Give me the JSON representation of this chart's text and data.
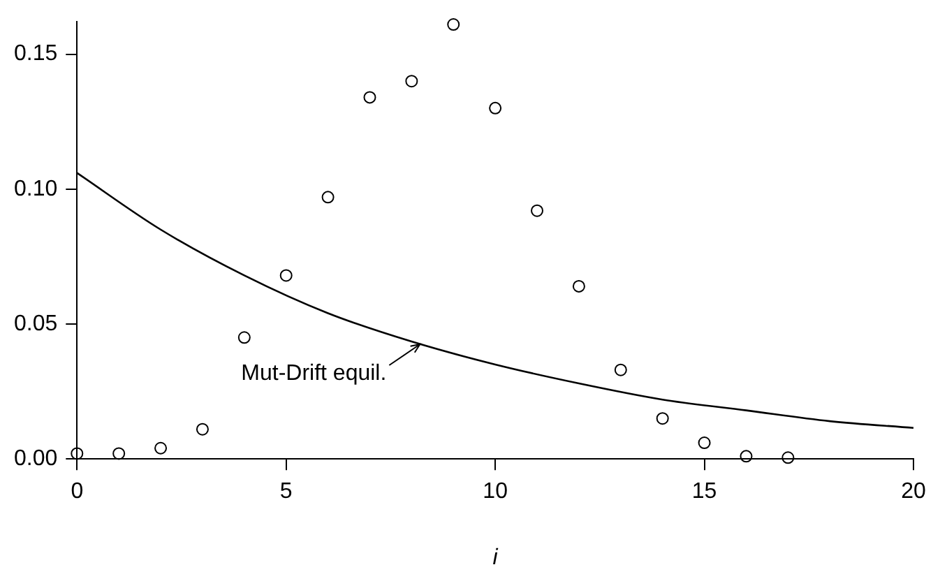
{
  "chart_data": {
    "type": "scatter",
    "xlabel": "i",
    "xlim": [
      0,
      20
    ],
    "xticks": [
      0,
      5,
      10,
      15,
      20
    ],
    "ylim": [
      0,
      0.162
    ],
    "yticks": [
      {
        "value": 0,
        "label": "0.00"
      },
      0.05,
      {
        "value": 0.1,
        "label": "0.10"
      },
      0.15
    ],
    "grid": false,
    "legend": false,
    "marker": "circle",
    "series": [
      {
        "color": "#000000",
        "x": [
          0,
          1,
          2,
          3,
          4,
          5,
          6,
          7,
          8,
          9,
          10,
          11,
          12,
          13,
          14,
          15,
          16,
          17
        ],
        "values": [
          0.002,
          0.002,
          0.004,
          0.011,
          0.045,
          0.068,
          0.097,
          0.134,
          0.14,
          0.161,
          0.13,
          0.092,
          0.064,
          0.033,
          0.015,
          0.006,
          0.001,
          0.0005
        ]
      },
      {
        "type": "line",
        "color": "#000000",
        "line_style": "solid",
        "marker": "none",
        "x": [
          0,
          2,
          4,
          6,
          8,
          10,
          12,
          14,
          16,
          18,
          20
        ],
        "values": [
          0.106,
          0.085,
          0.068,
          0.054,
          0.0435,
          0.035,
          0.028,
          0.022,
          0.018,
          0.014,
          0.0115
        ]
      }
    ],
    "annotations": [
      {
        "text": "Mut-Drift equil.",
        "x": 8.2,
        "y": 0.043
      }
    ]
  }
}
